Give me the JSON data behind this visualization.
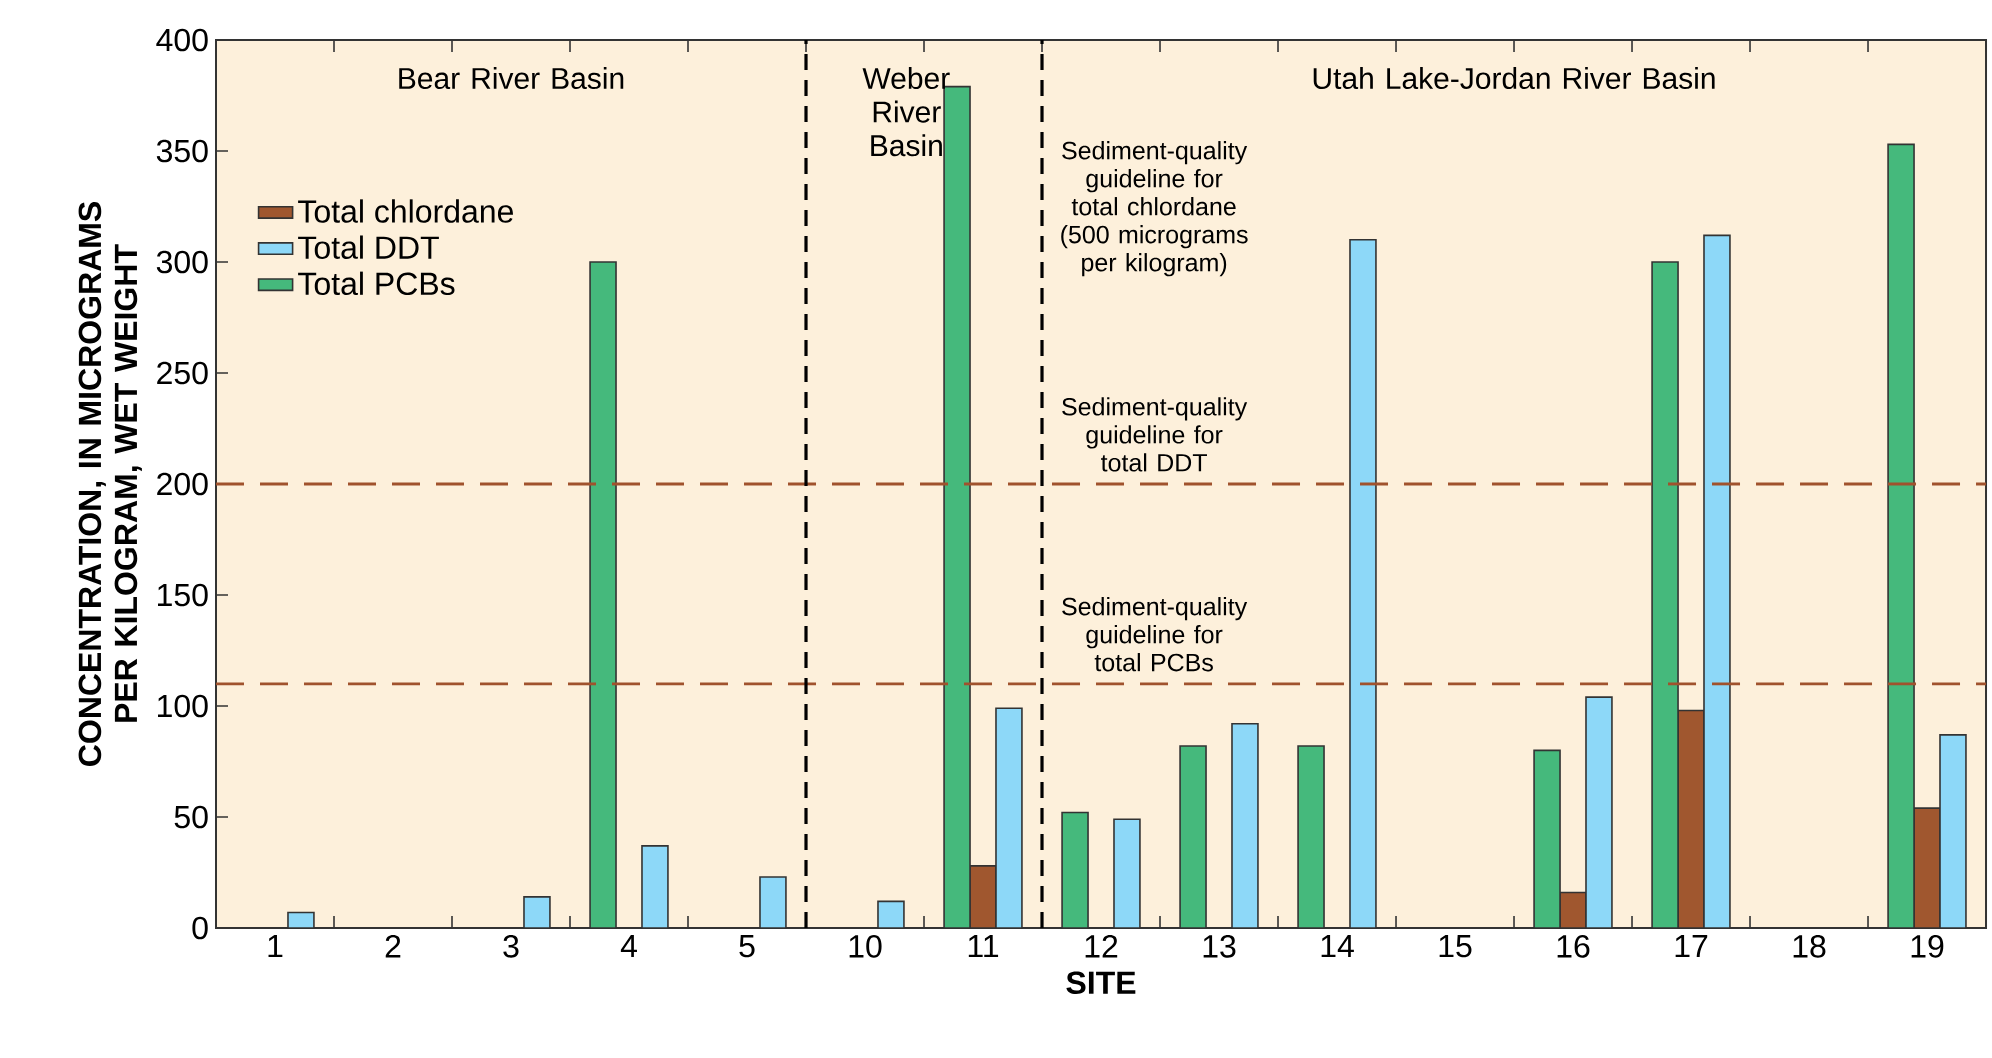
{
  "chart_data": {
    "type": "bar",
    "xlabel": "SITE",
    "ylabel": "CONCENTRATION, IN MICROGRAMS PER KILOGRAM, WET WEIGHT",
    "categories": [
      "1",
      "2",
      "3",
      "4",
      "5",
      "10",
      "11",
      "12",
      "13",
      "14",
      "15",
      "16",
      "17",
      "18",
      "19"
    ],
    "series": [
      {
        "name": "Total chlordane",
        "color": "#a0572f",
        "values": [
          null,
          null,
          null,
          null,
          null,
          null,
          28,
          null,
          null,
          null,
          null,
          16,
          98,
          null,
          54
        ]
      },
      {
        "name": "Total DDT",
        "color": "#8dd8f8",
        "values": [
          7,
          null,
          14,
          37,
          23,
          12,
          99,
          49,
          92,
          310,
          null,
          104,
          312,
          null,
          87
        ]
      },
      {
        "name": "Total PCBs",
        "color": "#45b97c",
        "values": [
          null,
          null,
          null,
          300,
          null,
          null,
          379,
          52,
          82,
          82,
          null,
          80,
          300,
          null,
          353
        ]
      }
    ],
    "ylim": [
      0,
      400
    ],
    "yticks": [
      0,
      50,
      100,
      150,
      200,
      250,
      300,
      350,
      400
    ],
    "legend": "top left",
    "grid": false,
    "ref_lines": [
      {
        "axis": "y",
        "value": 200,
        "label": "Sediment-quality guideline for total DDT",
        "color": "#a0522d",
        "line_style": "dashed"
      },
      {
        "axis": "y",
        "value": 110,
        "label": "Sediment-quality guideline for total PCBs",
        "color": "#a0522d",
        "line_style": "dashed"
      }
    ],
    "annotations": [
      "Bear River Basin",
      "Weber River Basin",
      "Utah Lake-Jordan River Basin",
      "Sediment-quality guideline for total chlordane (500 micrograms per kilogram)"
    ]
  }
}
